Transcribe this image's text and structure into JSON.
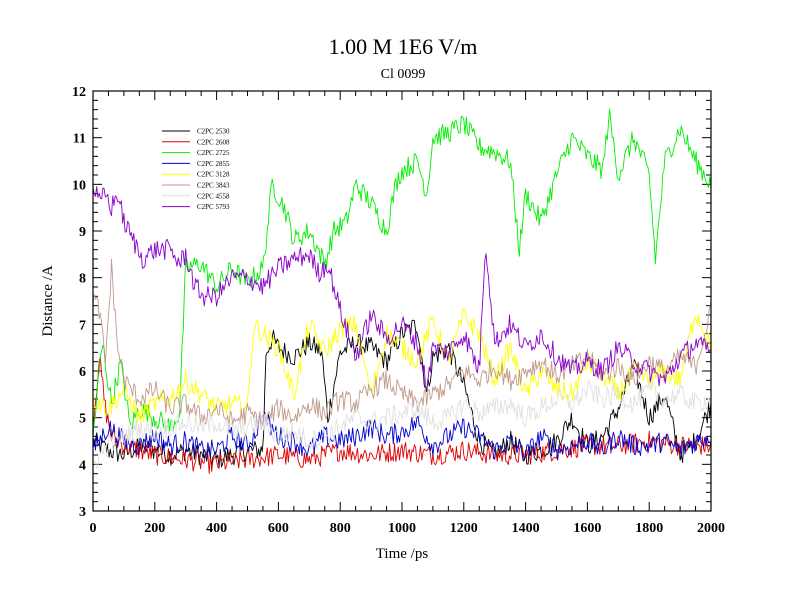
{
  "chart_data": {
    "type": "line",
    "title": "1.00 M 1E6 V/m",
    "subtitle": "Cl 0099",
    "xlabel": "Time /ps",
    "ylabel": "Distance /A",
    "xlim": [
      0,
      2000
    ],
    "ylim": [
      3,
      12
    ],
    "xticks": [
      0,
      200,
      400,
      600,
      800,
      1000,
      1200,
      1400,
      1600,
      1800,
      2000
    ],
    "yticks": [
      3,
      4,
      5,
      6,
      7,
      8,
      9,
      10,
      11,
      12
    ],
    "legend_position": "top-left",
    "series": [
      {
        "name": "C2PC 2530",
        "color": "#000000",
        "x": [
          0,
          50,
          100,
          150,
          200,
          250,
          300,
          350,
          400,
          450,
          500,
          550,
          560,
          580,
          600,
          650,
          700,
          740,
          760,
          800,
          850,
          900,
          950,
          1000,
          1050,
          1080,
          1100,
          1150,
          1200,
          1250,
          1300,
          1350,
          1400,
          1450,
          1500,
          1550,
          1600,
          1650,
          1700,
          1750,
          1800,
          1850,
          1900,
          1950,
          2000
        ],
        "values": [
          4.5,
          4.3,
          4.2,
          4.4,
          4.3,
          4.2,
          4.3,
          4.2,
          4.1,
          4.2,
          4.3,
          4.3,
          6.4,
          6.7,
          6.5,
          6.3,
          6.6,
          6.4,
          5.0,
          6.4,
          6.6,
          6.5,
          6.2,
          6.8,
          7.0,
          5.5,
          6.3,
          6.5,
          5.7,
          4.5,
          4.2,
          4.5,
          4.2,
          4.3,
          4.5,
          5.0,
          4.4,
          4.6,
          5.2,
          6.1,
          5.0,
          5.5,
          4.2,
          4.5,
          5.3
        ]
      },
      {
        "name": "C2PC 2608",
        "color": "#dd0000",
        "x": [
          0,
          20,
          40,
          60,
          100,
          150,
          200,
          300,
          400,
          500,
          600,
          700,
          800,
          900,
          1000,
          1100,
          1200,
          1300,
          1400,
          1500,
          1600,
          1700,
          1800,
          1900,
          2000
        ],
        "values": [
          4.8,
          6.3,
          5.2,
          4.6,
          4.4,
          4.3,
          4.2,
          4.1,
          4.0,
          4.1,
          4.2,
          4.1,
          4.3,
          4.2,
          4.3,
          4.2,
          4.3,
          4.2,
          4.2,
          4.3,
          4.4,
          4.4,
          4.5,
          4.4,
          4.4
        ]
      },
      {
        "name": "C2PC 2725",
        "color": "#00ee00",
        "x": [
          0,
          30,
          60,
          90,
          120,
          150,
          200,
          250,
          280,
          300,
          350,
          400,
          450,
          500,
          550,
          580,
          620,
          650,
          700,
          750,
          780,
          820,
          850,
          900,
          950,
          980,
          1000,
          1050,
          1080,
          1100,
          1150,
          1200,
          1250,
          1300,
          1350,
          1380,
          1400,
          1450,
          1500,
          1550,
          1600,
          1650,
          1670,
          1700,
          1750,
          1800,
          1820,
          1850,
          1900,
          1950,
          2000
        ],
        "values": [
          4.6,
          6.6,
          5.3,
          6.2,
          4.8,
          5.2,
          5.0,
          4.8,
          5.1,
          8.2,
          8.3,
          7.8,
          8.2,
          7.9,
          8.2,
          10.0,
          9.5,
          8.8,
          9.0,
          8.3,
          9.0,
          9.2,
          10.0,
          9.6,
          9.0,
          10.0,
          10.3,
          10.5,
          9.8,
          11.0,
          11.1,
          11.3,
          10.8,
          10.7,
          10.5,
          8.6,
          9.8,
          9.2,
          10.2,
          11.0,
          10.6,
          10.3,
          11.5,
          10.2,
          11.0,
          10.2,
          8.4,
          10.5,
          11.2,
          10.5,
          10.0
        ]
      },
      {
        "name": "C2PC 2855",
        "color": "#0000cc",
        "x": [
          0,
          50,
          100,
          150,
          200,
          250,
          300,
          350,
          400,
          450,
          500,
          550,
          600,
          650,
          700,
          750,
          800,
          850,
          900,
          950,
          1000,
          1050,
          1100,
          1150,
          1200,
          1250,
          1300,
          1350,
          1400,
          1450,
          1500,
          1550,
          1600,
          1650,
          1700,
          1750,
          1800,
          1850,
          1900,
          1950,
          2000
        ],
        "values": [
          4.3,
          4.8,
          4.5,
          4.4,
          4.6,
          4.4,
          4.5,
          4.3,
          4.3,
          4.6,
          4.4,
          5.0,
          4.6,
          4.5,
          4.3,
          4.6,
          4.5,
          4.6,
          4.8,
          4.6,
          4.7,
          4.9,
          4.4,
          4.6,
          4.8,
          4.6,
          4.3,
          4.5,
          4.2,
          4.6,
          4.3,
          4.4,
          4.5,
          4.3,
          4.6,
          4.4,
          4.4,
          4.5,
          4.3,
          4.5,
          4.6
        ]
      },
      {
        "name": "C2PC 3128",
        "color": "#ffff00",
        "x": [
          0,
          50,
          100,
          150,
          200,
          250,
          300,
          350,
          400,
          450,
          500,
          520,
          550,
          600,
          650,
          700,
          750,
          800,
          850,
          900,
          950,
          1000,
          1050,
          1100,
          1150,
          1200,
          1250,
          1300,
          1350,
          1400,
          1450,
          1500,
          1550,
          1600,
          1650,
          1700,
          1750,
          1800,
          1850,
          1900,
          1950,
          2000
        ],
        "values": [
          5.4,
          5.2,
          5.6,
          5.0,
          5.3,
          5.4,
          5.8,
          5.5,
          5.2,
          5.3,
          5.2,
          7.0,
          6.8,
          6.5,
          5.5,
          7.0,
          6.4,
          6.9,
          7.0,
          5.5,
          6.8,
          6.5,
          6.2,
          7.1,
          6.2,
          7.2,
          6.8,
          5.8,
          6.5,
          5.5,
          6.0,
          5.6,
          5.5,
          6.2,
          5.9,
          5.5,
          6.0,
          5.8,
          6.0,
          5.8,
          7.3,
          6.5
        ]
      },
      {
        "name": "C2PC 3843",
        "color": "#c09a8a",
        "x": [
          0,
          20,
          40,
          60,
          80,
          100,
          150,
          200,
          250,
          300,
          350,
          400,
          450,
          500,
          550,
          600,
          650,
          700,
          750,
          800,
          850,
          900,
          950,
          1000,
          1050,
          1100,
          1150,
          1200,
          1250,
          1300,
          1350,
          1400,
          1450,
          1500,
          1550,
          1600,
          1650,
          1700,
          1750,
          1800,
          1850,
          1900,
          1950,
          2000
        ],
        "values": [
          7.6,
          7.3,
          6.2,
          8.2,
          6.5,
          5.8,
          5.4,
          5.6,
          5.2,
          5.3,
          5.0,
          5.2,
          4.9,
          5.1,
          4.9,
          5.2,
          5.0,
          5.3,
          5.1,
          5.4,
          5.3,
          5.6,
          5.8,
          5.5,
          5.3,
          5.5,
          5.7,
          6.0,
          5.8,
          6.1,
          5.8,
          6.0,
          6.2,
          5.9,
          6.1,
          6.3,
          5.9,
          6.1,
          5.8,
          6.2,
          6.0,
          6.3,
          6.1,
          7.3
        ]
      },
      {
        "name": "C2PC 4558",
        "color": "#e0e0e0",
        "x": [
          0,
          50,
          100,
          150,
          200,
          250,
          300,
          350,
          400,
          450,
          500,
          550,
          600,
          650,
          700,
          750,
          800,
          850,
          900,
          950,
          1000,
          1050,
          1100,
          1150,
          1200,
          1250,
          1300,
          1350,
          1400,
          1450,
          1500,
          1550,
          1600,
          1650,
          1700,
          1750,
          1800,
          1850,
          1900,
          1950,
          2000
        ],
        "values": [
          4.0,
          4.4,
          4.6,
          4.8,
          4.7,
          4.8,
          4.9,
          4.8,
          4.9,
          4.7,
          4.8,
          4.9,
          4.6,
          4.7,
          4.5,
          4.6,
          4.8,
          5.0,
          4.9,
          5.0,
          5.1,
          5.2,
          4.9,
          5.0,
          5.3,
          5.1,
          5.2,
          5.3,
          5.0,
          5.2,
          5.4,
          5.3,
          5.6,
          5.4,
          5.5,
          5.3,
          5.6,
          5.4,
          5.5,
          5.3,
          5.4
        ]
      },
      {
        "name": "C2PC 5793",
        "color": "#8800cc",
        "x": [
          0,
          20,
          40,
          60,
          80,
          100,
          130,
          160,
          200,
          250,
          280,
          300,
          330,
          360,
          400,
          450,
          500,
          550,
          600,
          650,
          700,
          730,
          760,
          800,
          850,
          900,
          950,
          1000,
          1050,
          1080,
          1100,
          1150,
          1200,
          1250,
          1270,
          1300,
          1350,
          1400,
          1450,
          1500,
          1550,
          1600,
          1650,
          1700,
          1750,
          1800,
          1850,
          1900,
          1950,
          2000
        ],
        "values": [
          10.0,
          9.6,
          9.8,
          9.5,
          9.8,
          9.2,
          8.8,
          8.4,
          8.6,
          8.6,
          8.3,
          8.5,
          7.8,
          7.6,
          7.6,
          8.0,
          8.0,
          7.8,
          8.2,
          8.4,
          8.5,
          8.1,
          8.3,
          7.3,
          6.3,
          7.2,
          6.7,
          7.0,
          6.6,
          5.7,
          6.5,
          6.4,
          6.8,
          6.0,
          8.8,
          6.6,
          7.0,
          6.5,
          6.8,
          6.3,
          6.0,
          6.2,
          6.0,
          6.5,
          6.2,
          6.0,
          5.8,
          6.3,
          6.6,
          6.4
        ]
      }
    ]
  }
}
